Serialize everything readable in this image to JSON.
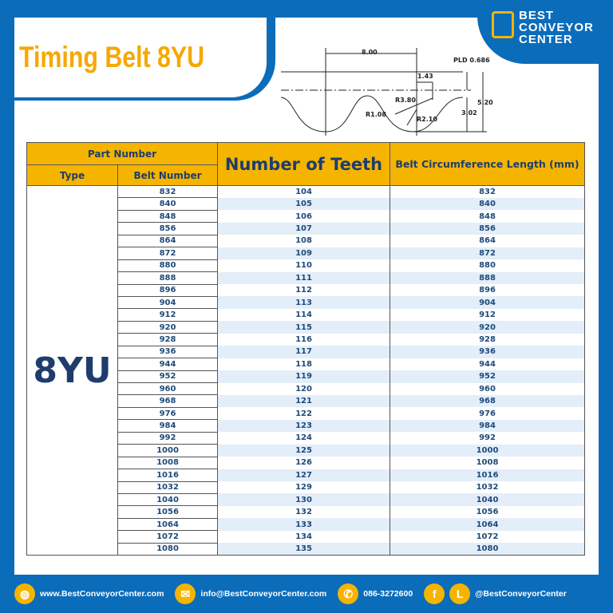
{
  "title": "Timing Belt 8YU",
  "logo": {
    "line1": "BEST",
    "line2": "CONVEYOR",
    "line3": "CENTER"
  },
  "diagram": {
    "pitch": "8.00",
    "pld": "PLD 0.686",
    "dim1": "1.43",
    "r1": "R3.80",
    "r2": "R1.08",
    "r3": "R2.10",
    "h1": "3.02",
    "h2": "5.20"
  },
  "table": {
    "header_part": "Part Number",
    "header_type": "Type",
    "header_belt": "Belt Number",
    "header_teeth": "Number of Teeth",
    "header_length": "Belt Circumference Length (mm)",
    "type": "8YU",
    "rows": [
      [
        "832",
        "104",
        "832"
      ],
      [
        "840",
        "105",
        "840"
      ],
      [
        "848",
        "106",
        "848"
      ],
      [
        "856",
        "107",
        "856"
      ],
      [
        "864",
        "108",
        "864"
      ],
      [
        "872",
        "109",
        "872"
      ],
      [
        "880",
        "110",
        "880"
      ],
      [
        "888",
        "111",
        "888"
      ],
      [
        "896",
        "112",
        "896"
      ],
      [
        "904",
        "113",
        "904"
      ],
      [
        "912",
        "114",
        "912"
      ],
      [
        "920",
        "115",
        "920"
      ],
      [
        "928",
        "116",
        "928"
      ],
      [
        "936",
        "117",
        "936"
      ],
      [
        "944",
        "118",
        "944"
      ],
      [
        "952",
        "119",
        "952"
      ],
      [
        "960",
        "120",
        "960"
      ],
      [
        "968",
        "121",
        "968"
      ],
      [
        "976",
        "122",
        "976"
      ],
      [
        "984",
        "123",
        "984"
      ],
      [
        "992",
        "124",
        "992"
      ],
      [
        "1000",
        "125",
        "1000"
      ],
      [
        "1008",
        "126",
        "1008"
      ],
      [
        "1016",
        "127",
        "1016"
      ],
      [
        "1032",
        "129",
        "1032"
      ],
      [
        "1040",
        "130",
        "1040"
      ],
      [
        "1056",
        "132",
        "1056"
      ],
      [
        "1064",
        "133",
        "1064"
      ],
      [
        "1072",
        "134",
        "1072"
      ],
      [
        "1080",
        "135",
        "1080"
      ]
    ]
  },
  "footer": {
    "website": "www.BestConveyorCenter.com",
    "email": "info@BestConveyorCenter.com",
    "phone": "086-3272600",
    "social": "@BestConveyorCenter"
  },
  "colors": {
    "brand_blue": "#0b6cba",
    "accent": "#f5b400"
  }
}
